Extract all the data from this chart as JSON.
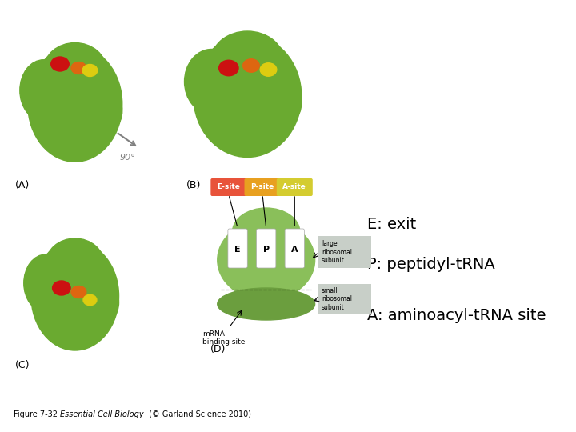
{
  "bg_color": "#ffffff",
  "title_text": "Figure 7-32  Essential Cell Biology (© Garland Science 2010)",
  "label_A": "(A)",
  "label_B": "(B)",
  "label_C": "(C)",
  "label_D": "(D)",
  "arrow_label": "90°",
  "esite_label": "E-site",
  "psite_label": "P-site",
  "asite_label": "A-site",
  "esite_color": "#e8533a",
  "psite_color": "#e8a020",
  "asite_color": "#d4cc30",
  "large_label": "large\nribosomal\nsubunit",
  "small_label": "small\nribosomal\nsubunit",
  "mrna_label": "mRNA-\nbinding site",
  "legend_E": "E: exit",
  "legend_P": "P: peptidyl-tRNA",
  "legend_A": "A: aminoacyl-tRNA site",
  "large_subunit_color": "#8abf5a",
  "small_subunit_color": "#6b9e3e",
  "slot_color": "#ffffff",
  "legend_box_color": "#c8cfc8",
  "ribosome_green": "#6aaa30",
  "ribosome_dark": "#4a8820",
  "tRNA_slot_color": "#f0f0f0"
}
